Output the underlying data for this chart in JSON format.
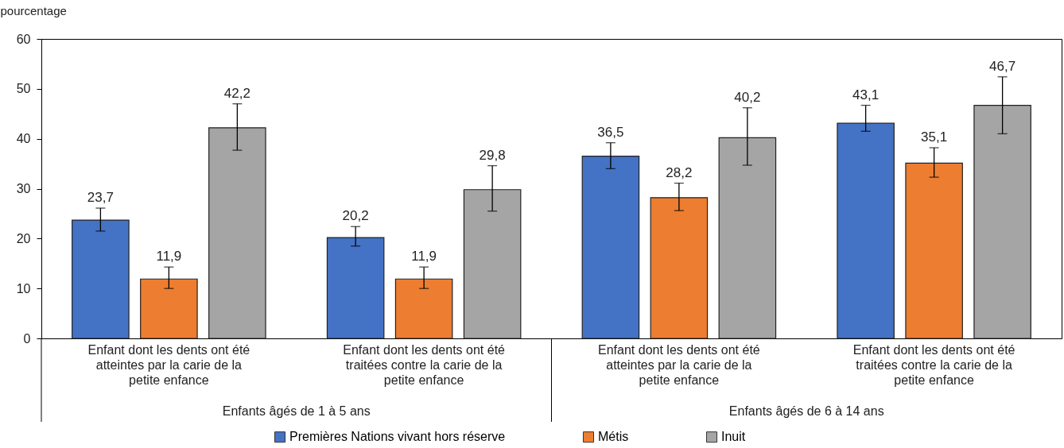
{
  "chart_data": {
    "type": "bar",
    "ylabel": "pourcentage",
    "categories": [
      "Enfant dont les dents ont été atteintes par la carie de la petite enfance",
      "Enfant dont les dents ont été traitées contre la carie de la petite enfance",
      "Enfant dont les dents ont été atteintes par la carie de la petite enfance",
      "Enfant dont les dents ont été traitées contre la carie de la petite enfance"
    ],
    "series": [
      {
        "name": "Premières Nations vivant hors réserve",
        "color": "#4472c4",
        "values": [
          23.7,
          20.2,
          36.5,
          43.1
        ],
        "value_labels": [
          "23,7",
          "20,2",
          "36,5",
          "43,1"
        ],
        "errors": [
          [
            21.5,
            26.1
          ],
          [
            18.5,
            22.4
          ],
          [
            34.0,
            39.2
          ],
          [
            41.5,
            46.7
          ]
        ]
      },
      {
        "name": "Métis",
        "color": "#ed7d31",
        "values": [
          11.9,
          11.9,
          28.2,
          35.1
        ],
        "value_labels": [
          "11,9",
          "11,9",
          "28,2",
          "35,1"
        ],
        "errors": [
          [
            10.0,
            14.3
          ],
          [
            10.0,
            14.3
          ],
          [
            25.6,
            31.1
          ],
          [
            32.3,
            38.2
          ]
        ]
      },
      {
        "name": "Inuit",
        "color": "#a5a5a5",
        "values": [
          42.2,
          29.8,
          40.2,
          46.7
        ],
        "value_labels": [
          "42,2",
          "29,8",
          "40,2",
          "46,7"
        ],
        "errors": [
          [
            37.7,
            47.0
          ],
          [
            25.5,
            34.6
          ],
          [
            34.7,
            46.2
          ],
          [
            41.0,
            52.4
          ]
        ]
      }
    ],
    "annotations": [
      "Enfants âgés de 1 à 5 ans",
      "Enfants âgés de 6 à 14 ans"
    ],
    "ylim": [
      0,
      60
    ],
    "yticks": [
      0,
      10,
      20,
      30,
      40,
      50,
      60
    ],
    "grid": false,
    "legend": "bottom"
  }
}
